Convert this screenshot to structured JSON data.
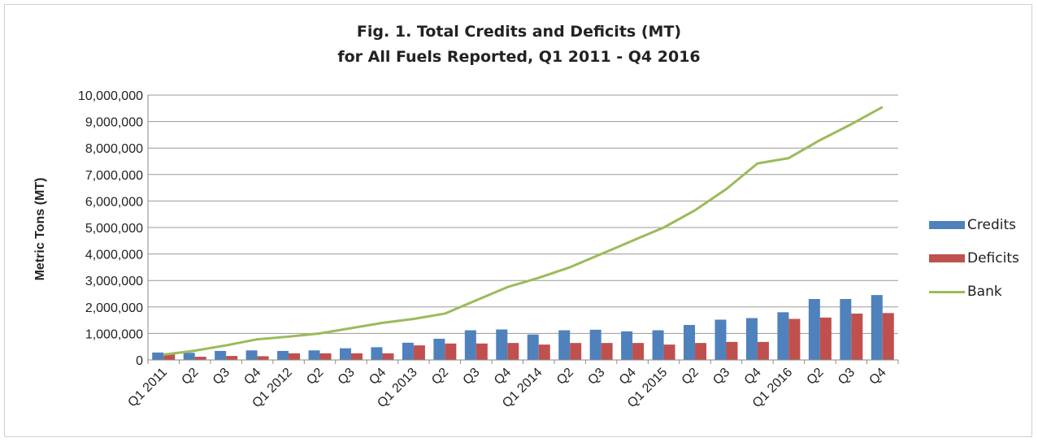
{
  "chart_data": {
    "type": "bar",
    "title_line1": "Fig. 1. Total Credits and Deficits (MT)",
    "title_line2": "for All Fuels Reported, Q1 2011 - Q4 2016",
    "xlabel": "",
    "ylabel": "Metric Tons (MT)",
    "ylim": [
      0,
      10000000
    ],
    "yticks": [
      "0",
      "1,000,000",
      "2,000,000",
      "3,000,000",
      "4,000,000",
      "5,000,000",
      "6,000,000",
      "7,000,000",
      "8,000,000",
      "9,000,000",
      "10,000,000"
    ],
    "grid": true,
    "legend_position": "right",
    "categories": [
      "Q1 2011",
      "Q2",
      "Q3",
      "Q4",
      "Q1 2012",
      "Q2",
      "Q3",
      "Q4",
      "Q1 2013",
      "Q2",
      "Q3",
      "Q4",
      "Q1 2014",
      "Q2",
      "Q3",
      "Q4",
      "Q1 2015",
      "Q2",
      "Q3",
      "Q4",
      "Q1 2016",
      "Q2",
      "Q3",
      "Q4"
    ],
    "series": [
      {
        "name": "Credits",
        "kind": "bar",
        "color": "#4f81bd",
        "values": [
          280000,
          270000,
          340000,
          360000,
          340000,
          360000,
          440000,
          480000,
          650000,
          800000,
          1120000,
          1150000,
          960000,
          1120000,
          1140000,
          1080000,
          1120000,
          1320000,
          1520000,
          1580000,
          1800000,
          2300000,
          2300000,
          2450000
        ]
      },
      {
        "name": "Deficits",
        "kind": "bar",
        "color": "#c0504d",
        "values": [
          220000,
          120000,
          150000,
          140000,
          250000,
          250000,
          250000,
          250000,
          550000,
          620000,
          620000,
          640000,
          580000,
          640000,
          640000,
          640000,
          580000,
          640000,
          680000,
          680000,
          1550000,
          1600000,
          1750000,
          1770000
        ]
      },
      {
        "name": "Bank",
        "kind": "line",
        "color": "#9bbb59",
        "values": [
          200000,
          350000,
          550000,
          780000,
          880000,
          1000000,
          1200000,
          1400000,
          1550000,
          1750000,
          2250000,
          2750000,
          3100000,
          3500000,
          4000000,
          4500000,
          5000000,
          5650000,
          6450000,
          7420000,
          7620000,
          8300000,
          8900000,
          9550000
        ]
      }
    ]
  }
}
